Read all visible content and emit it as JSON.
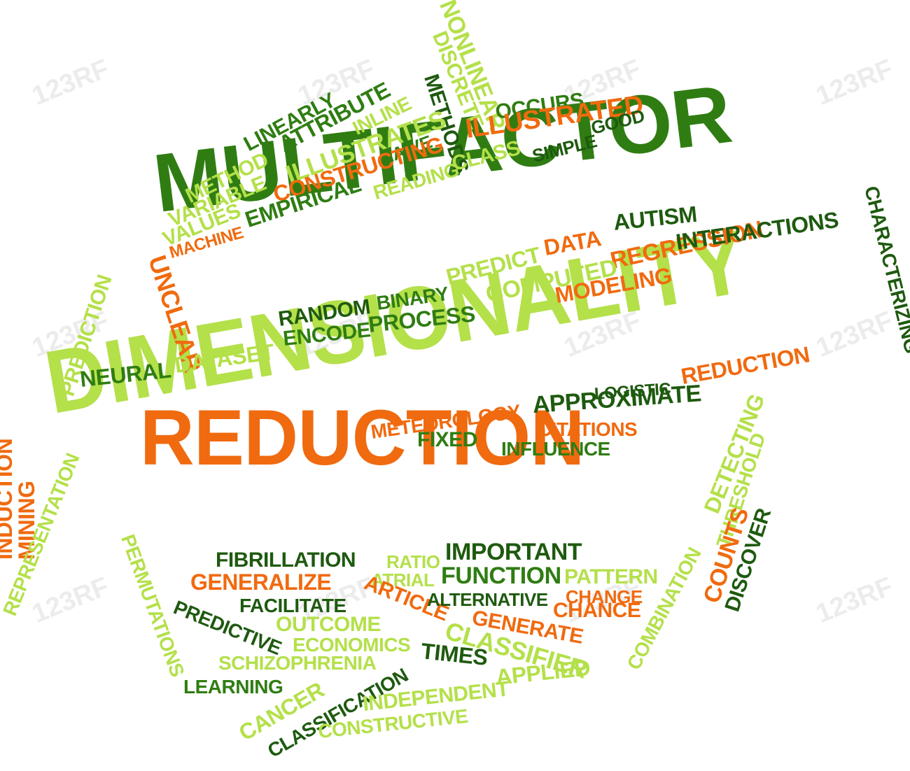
{
  "palette": {
    "dark_green": "#2f7d12",
    "deep_green": "#1e5a0f",
    "lime": "#b4e04a",
    "orange": "#f06a0f"
  },
  "watermark": "123RF",
  "words": [
    {
      "text": "MULTIFACTOR",
      "color": "dark_green",
      "size": 118,
      "rot": -7
    },
    {
      "text": "DIMENSIONALITY",
      "color": "lime",
      "size": 128,
      "rot": -10
    },
    {
      "text": "REDUCTION",
      "color": "orange",
      "size": 112,
      "rot": 0
    },
    {
      "text": "NONLINEAR",
      "color": "lime",
      "size": 34,
      "rot": 68
    },
    {
      "text": "DISCRETE",
      "color": "lime",
      "size": 30,
      "rot": 68
    },
    {
      "text": "METHODS",
      "color": "deep_green",
      "size": 30,
      "rot": 72
    },
    {
      "text": "LINEARLY",
      "color": "dark_green",
      "size": 30,
      "rot": -28
    },
    {
      "text": "ATTRIBUTE",
      "color": "dark_green",
      "size": 32,
      "rot": -28
    },
    {
      "text": "INLINE",
      "color": "lime",
      "size": 28,
      "rot": -26
    },
    {
      "text": "ILLUSTRATES",
      "color": "lime",
      "size": 36,
      "rot": -20
    },
    {
      "text": "OCCURS",
      "color": "dark_green",
      "size": 30,
      "rot": -8
    },
    {
      "text": "ILLUSTRATED",
      "color": "orange",
      "size": 38,
      "rot": -8
    },
    {
      "text": "METHOD",
      "color": "lime",
      "size": 30,
      "rot": -26
    },
    {
      "text": "NAIVE",
      "color": "dark_green",
      "size": 26,
      "rot": -20
    },
    {
      "text": "CONSTRUCTING",
      "color": "orange",
      "size": 32,
      "rot": -17
    },
    {
      "text": "SIMPLE",
      "color": "deep_green",
      "size": 26,
      "rot": -14
    },
    {
      "text": "GOOD",
      "color": "deep_green",
      "size": 26,
      "rot": -14
    },
    {
      "text": "VARIABLE",
      "color": "lime",
      "size": 30,
      "rot": -22
    },
    {
      "text": "CLASS",
      "color": "lime",
      "size": 30,
      "rot": -14
    },
    {
      "text": "READING",
      "color": "lime",
      "size": 28,
      "rot": -16
    },
    {
      "text": "VALUES",
      "color": "lime",
      "size": 30,
      "rot": -22
    },
    {
      "text": "EMPIRICAL",
      "color": "dark_green",
      "size": 32,
      "rot": -18
    },
    {
      "text": "MACHINE",
      "color": "orange",
      "size": 24,
      "rot": -16
    },
    {
      "text": "CHARACTERIZING",
      "color": "deep_green",
      "size": 28,
      "rot": 76
    },
    {
      "text": "AUTISM",
      "color": "deep_green",
      "size": 32,
      "rot": -6
    },
    {
      "text": "DATA",
      "color": "orange",
      "size": 32,
      "rot": -10
    },
    {
      "text": "PREDICT",
      "color": "lime",
      "size": 32,
      "rot": -14
    },
    {
      "text": "REGRESSION",
      "color": "orange",
      "size": 34,
      "rot": -12
    },
    {
      "text": "INTERACTIONS",
      "color": "deep_green",
      "size": 32,
      "rot": -8
    },
    {
      "text": "UNCLEAR",
      "color": "orange",
      "size": 36,
      "rot": 72
    },
    {
      "text": "COMPUTED",
      "color": "lime",
      "size": 34,
      "rot": -12
    },
    {
      "text": "MODELING",
      "color": "orange",
      "size": 32,
      "rot": -10
    },
    {
      "text": "PREDICTION",
      "color": "lime",
      "size": 30,
      "rot": -72
    },
    {
      "text": "RANDOM",
      "color": "deep_green",
      "size": 30,
      "rot": -8
    },
    {
      "text": "BINARY",
      "color": "dark_green",
      "size": 28,
      "rot": -8
    },
    {
      "text": "ENCODE",
      "color": "dark_green",
      "size": 30,
      "rot": -6
    },
    {
      "text": "PROCESS",
      "color": "dark_green",
      "size": 32,
      "rot": -6
    },
    {
      "text": "DATASET",
      "color": "lime",
      "size": 32,
      "rot": -8
    },
    {
      "text": "NEURAL",
      "color": "dark_green",
      "size": 32,
      "rot": -6
    },
    {
      "text": "REDUCTION",
      "color": "orange",
      "size": 32,
      "rot": -10
    },
    {
      "text": "LOGISTIC",
      "color": "deep_green",
      "size": 24,
      "rot": -4
    },
    {
      "text": "APPROXIMATE",
      "color": "deep_green",
      "size": 34,
      "rot": -4
    },
    {
      "text": "DETECTING",
      "color": "lime",
      "size": 32,
      "rot": -68
    },
    {
      "text": "METEOROLOGY",
      "color": "orange",
      "size": 28,
      "rot": -8
    },
    {
      "text": "CITATIONS",
      "color": "orange",
      "size": 28,
      "rot": 0
    },
    {
      "text": "FIXED",
      "color": "dark_green",
      "size": 30,
      "rot": 0
    },
    {
      "text": "INFLUENCE",
      "color": "dark_green",
      "size": 28,
      "rot": 0
    },
    {
      "text": "THRESHOLD",
      "color": "lime",
      "size": 28,
      "rot": -72
    },
    {
      "text": "INDUCTION",
      "color": "orange",
      "size": 32,
      "rot": -90
    },
    {
      "text": "MINING",
      "color": "orange",
      "size": 32,
      "rot": -90
    },
    {
      "text": "REPRESENTATION",
      "color": "lime",
      "size": 28,
      "rot": -68
    },
    {
      "text": "PERMUTATIONS",
      "color": "lime",
      "size": 28,
      "rot": 70
    },
    {
      "text": "COUNTS",
      "color": "orange",
      "size": 34,
      "rot": -72
    },
    {
      "text": "DISCOVER",
      "color": "deep_green",
      "size": 30,
      "rot": -72
    },
    {
      "text": "COMBINATION",
      "color": "lime",
      "size": 28,
      "rot": -62
    },
    {
      "text": "FIBRILLATION",
      "color": "deep_green",
      "size": 30,
      "rot": 0
    },
    {
      "text": "RATIO",
      "color": "lime",
      "size": 26,
      "rot": 0
    },
    {
      "text": "IMPORTANT",
      "color": "deep_green",
      "size": 34,
      "rot": 0
    },
    {
      "text": "ATRIAL",
      "color": "lime",
      "size": 26,
      "rot": 0
    },
    {
      "text": "FUNCTION",
      "color": "dark_green",
      "size": 34,
      "rot": 0
    },
    {
      "text": "PATTERN",
      "color": "lime",
      "size": 30,
      "rot": 0
    },
    {
      "text": "GENERALIZE",
      "color": "orange",
      "size": 32,
      "rot": 0
    },
    {
      "text": "ARTICLE",
      "color": "orange",
      "size": 30,
      "rot": 22
    },
    {
      "text": "FACILITATE",
      "color": "deep_green",
      "size": 28,
      "rot": 0
    },
    {
      "text": "ALTERNATIVE",
      "color": "deep_green",
      "size": 26,
      "rot": 0
    },
    {
      "text": "CHANGE",
      "color": "orange",
      "size": 26,
      "rot": 0
    },
    {
      "text": "CHANCE",
      "color": "orange",
      "size": 30,
      "rot": 0
    },
    {
      "text": "PREDICTIVE",
      "color": "deep_green",
      "size": 28,
      "rot": 22
    },
    {
      "text": "OUTCOME",
      "color": "lime",
      "size": 30,
      "rot": 0
    },
    {
      "text": "GENERATE",
      "color": "orange",
      "size": 30,
      "rot": 10
    },
    {
      "text": "ECONOMICS",
      "color": "lime",
      "size": 28,
      "rot": 0
    },
    {
      "text": "CLASSIFIER",
      "color": "lime",
      "size": 36,
      "rot": 16
    },
    {
      "text": "SCHIZOPHRENIA",
      "color": "lime",
      "size": 28,
      "rot": 0
    },
    {
      "text": "TIMES",
      "color": "deep_green",
      "size": 32,
      "rot": 6
    },
    {
      "text": "APPLIED",
      "color": "lime",
      "size": 32,
      "rot": -6
    },
    {
      "text": "LEARNING",
      "color": "dark_green",
      "size": 28,
      "rot": 0
    },
    {
      "text": "CANCER",
      "color": "lime",
      "size": 32,
      "rot": -30
    },
    {
      "text": "CLASSIFICATION",
      "color": "deep_green",
      "size": 28,
      "rot": -30
    },
    {
      "text": "INDEPENDENT",
      "color": "lime",
      "size": 30,
      "rot": -6
    },
    {
      "text": "CONSTRUCTIVE",
      "color": "lime",
      "size": 28,
      "rot": -6
    }
  ]
}
